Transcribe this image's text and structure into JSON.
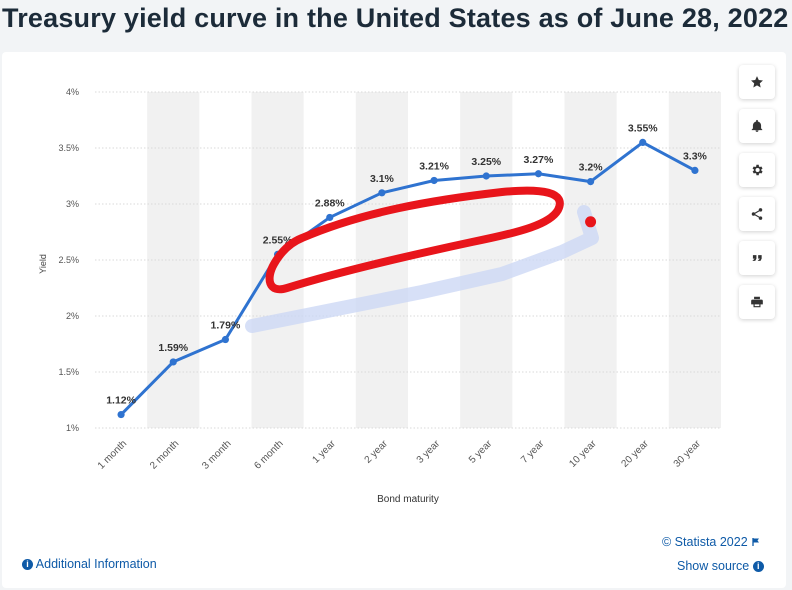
{
  "page": {
    "title": "Treasury yield curve in the United States as of June 28, 2022"
  },
  "toolbar": {
    "items": [
      {
        "name": "favorite",
        "icon": "star-icon"
      },
      {
        "name": "notify",
        "icon": "bell-icon"
      },
      {
        "name": "settings",
        "icon": "gear-icon"
      },
      {
        "name": "share",
        "icon": "share-icon"
      },
      {
        "name": "cite",
        "icon": "quote-icon"
      },
      {
        "name": "print",
        "icon": "print-icon"
      }
    ]
  },
  "footer": {
    "additional_info": "Additional Information",
    "credit": "© Statista 2022",
    "show_source": "Show source"
  },
  "colors": {
    "line": "#2f73d0",
    "annotation": "#e8151b",
    "band": "#f1f1f1",
    "grid": "#d9d9d9"
  },
  "chart_data": {
    "type": "line",
    "categories": [
      "1 month",
      "2 month",
      "3 month",
      "6 month",
      "1 year",
      "2 year",
      "3 year",
      "5 year",
      "7 year",
      "10 year",
      "20 year",
      "30 year"
    ],
    "series": [
      {
        "values": [
          1.12,
          1.59,
          1.79,
          2.55,
          2.88,
          3.1,
          3.21,
          3.25,
          3.27,
          3.2,
          3.55,
          3.3
        ],
        "data_labels": [
          "1.12%",
          "1.59%",
          "1.79%",
          "2.55%",
          "2.88%",
          "3.1%",
          "3.21%",
          "3.25%",
          "3.27%",
          "3.2%",
          "3.55%",
          "3.3%"
        ]
      }
    ],
    "xlabel": "Bond maturity",
    "ylabel": "Yield",
    "ylim": [
      1,
      4
    ],
    "yticks": [
      1,
      1.5,
      2,
      2.5,
      3,
      3.5,
      4
    ],
    "ytick_labels": [
      "1%",
      "1.5%",
      "2%",
      "2.5%",
      "3%",
      "3.5%",
      "4%"
    ],
    "grid": true,
    "legend": "none",
    "annotations": [
      {
        "type": "hand-drawn loop",
        "color": "#e8151b",
        "from": "6 month",
        "to": "7 year"
      },
      {
        "type": "dot",
        "color": "#e8151b",
        "category": "10 year",
        "value": 2.85
      }
    ]
  }
}
